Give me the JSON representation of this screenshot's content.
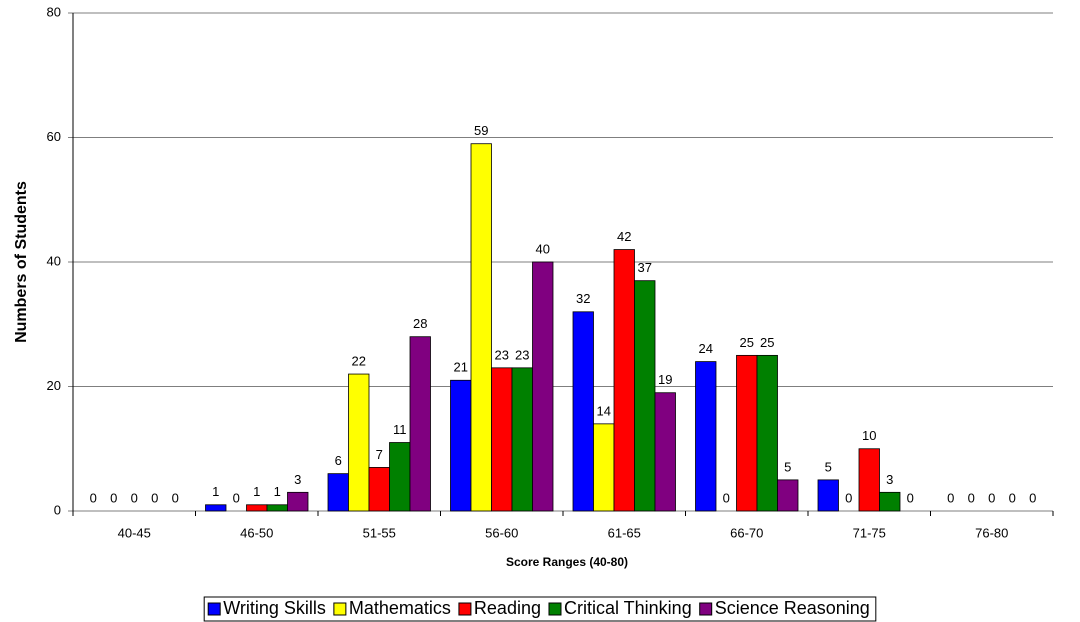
{
  "chart_data": {
    "type": "bar",
    "y_label": "Numbers of Students",
    "x_label": "Score Ranges (40-80)",
    "categories": [
      "40-45",
      "46-50",
      "51-55",
      "56-60",
      "61-65",
      "66-70",
      "71-75",
      "76-80"
    ],
    "series": [
      {
        "name": "Writing Skills",
        "color": "#0000ff",
        "values": [
          0,
          1,
          6,
          21,
          32,
          24,
          5,
          0
        ]
      },
      {
        "name": "Mathematics",
        "color": "#ffff00",
        "values": [
          0,
          0,
          22,
          59,
          14,
          0,
          0,
          0
        ]
      },
      {
        "name": "Reading",
        "color": "#ff0000",
        "values": [
          0,
          1,
          7,
          23,
          42,
          25,
          10,
          0
        ]
      },
      {
        "name": "Critical Thinking",
        "color": "#008000",
        "values": [
          0,
          1,
          11,
          23,
          37,
          25,
          3,
          0
        ]
      },
      {
        "name": "Science Reasoning",
        "color": "#800080",
        "values": [
          0,
          3,
          28,
          40,
          19,
          5,
          0,
          0
        ]
      }
    ],
    "ylim": [
      0,
      80
    ],
    "yticks": [
      0,
      20,
      40,
      60,
      80
    ],
    "grid": true
  }
}
